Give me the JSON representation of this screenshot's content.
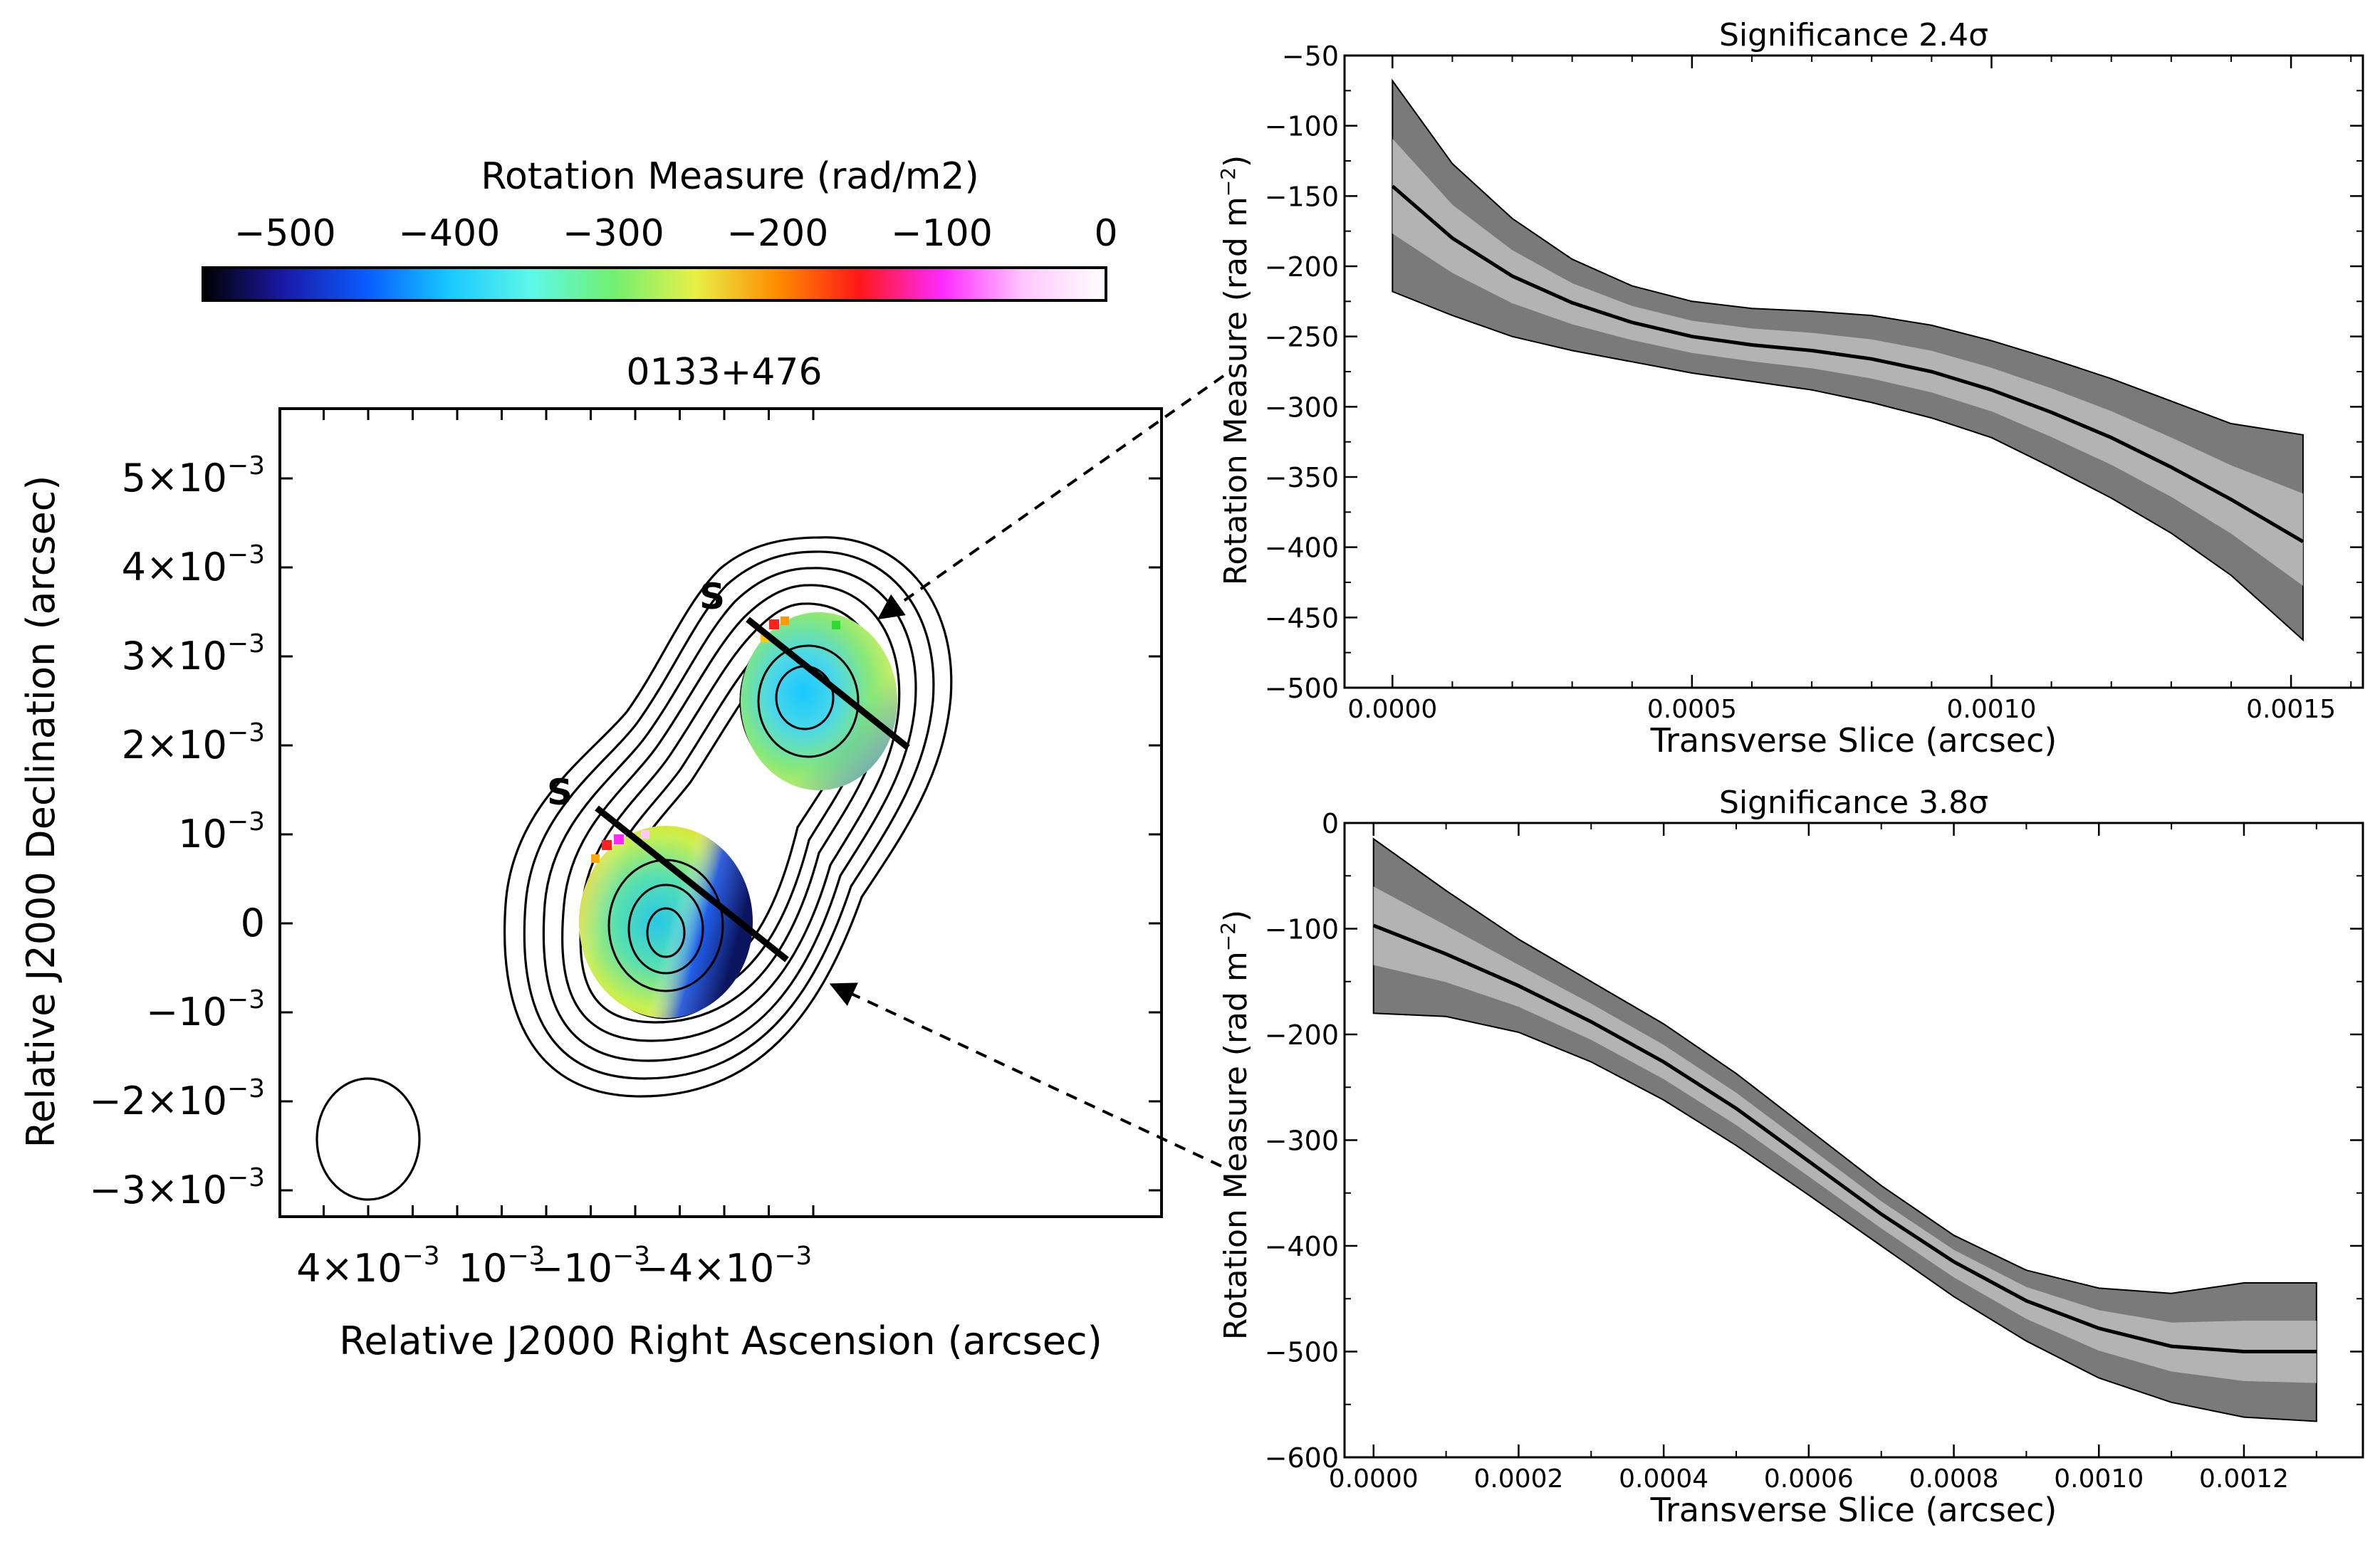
{
  "colorbar": {
    "title": "Rotation Measure (rad/m2)",
    "ticks": [
      "−500",
      "−400",
      "−300",
      "−200",
      "−100",
      "0"
    ],
    "range": [
      -550,
      0
    ],
    "colors": [
      "#000000",
      "#1a1aa8",
      "#0a5cff",
      "#18c8ff",
      "#5ef8e8",
      "#70f070",
      "#e8f048",
      "#ff8c00",
      "#ff1818",
      "#ff28ff",
      "#ffc8ff",
      "#ffffff"
    ]
  },
  "rm_map": {
    "title": "0133+476",
    "xlabel": "Relative J2000 Right Ascension (arcsec)",
    "ylabel": "Relative J2000 Declination (arcsec)",
    "x_ticks": [
      {
        "label": "4×10",
        "exp": "−3"
      },
      {
        "label": "10",
        "exp": "−3"
      },
      {
        "label": "−10",
        "exp": "−3"
      },
      {
        "label": "−4×10",
        "exp": "−3"
      }
    ],
    "y_ticks": [
      {
        "label": "5×10",
        "exp": "−3"
      },
      {
        "label": "4×10",
        "exp": "−3"
      },
      {
        "label": "3×10",
        "exp": "−3"
      },
      {
        "label": "2×10",
        "exp": "−3"
      },
      {
        "label": "10",
        "exp": "−3"
      },
      {
        "label": "0",
        "exp": ""
      },
      {
        "label": "−10",
        "exp": "−3"
      },
      {
        "label": "−2×10",
        "exp": "−3"
      },
      {
        "label": "−3×10",
        "exp": "−3"
      }
    ],
    "slice_label": "S"
  },
  "chart_data": [
    {
      "type": "line",
      "title": "Significance 2.4σ",
      "xlabel": "Transverse Slice (arcsec)",
      "ylabel": "Rotation Measure (rad m⁻²)",
      "xlim": [
        -8e-05,
        0.00162
      ],
      "ylim": [
        -500,
        -50
      ],
      "x_ticks": [
        0.0,
        0.0005,
        0.001,
        0.0015
      ],
      "x_tick_labels": [
        "0.0000",
        "0.0005",
        "0.0010",
        "0.0015"
      ],
      "y_ticks": [
        -50,
        -100,
        -150,
        -200,
        -250,
        -300,
        -350,
        -400,
        -450,
        -500
      ],
      "x": [
        0.0,
        0.0001,
        0.0002,
        0.0003,
        0.0004,
        0.0005,
        0.0006,
        0.0007,
        0.0008,
        0.0009,
        0.001,
        0.0011,
        0.0012,
        0.0013,
        0.0014,
        0.00152
      ],
      "y": [
        -143,
        -180,
        -207,
        -226,
        -240,
        -250,
        -256,
        -260,
        -266,
        -275,
        -288,
        -304,
        -322,
        -343,
        -366,
        -396
      ],
      "upper": [
        -68,
        -127,
        -166,
        -195,
        -214,
        -225,
        -230,
        -232,
        -235,
        -242,
        -253,
        -266,
        -280,
        -296,
        -312,
        -320
      ],
      "lower": [
        -218,
        -235,
        -250,
        -260,
        -268,
        -276,
        -282,
        -288,
        -297,
        -308,
        -322,
        -343,
        -365,
        -390,
        -420,
        -466
      ]
    },
    {
      "type": "line",
      "title": "Significance 3.8σ",
      "xlabel": "Transverse Slice (arcsec)",
      "ylabel": "Rotation Measure (rad m⁻²)",
      "xlim": [
        -4e-05,
        0.001364
      ],
      "ylim": [
        -600,
        0
      ],
      "x_ticks": [
        0.0,
        0.0002,
        0.0004,
        0.0006,
        0.0008,
        0.001,
        0.0012
      ],
      "x_tick_labels": [
        "0.0000",
        "0.0002",
        "0.0004",
        "0.0006",
        "0.0008",
        "0.0010",
        "0.0012"
      ],
      "y_ticks": [
        0,
        -100,
        -200,
        -300,
        -400,
        -500,
        -600
      ],
      "y_tick_labels": [
        "0",
        "−100",
        "−200",
        "−300",
        "−400",
        "−500",
        "−600"
      ],
      "x": [
        0.0,
        0.0001,
        0.0002,
        0.0003,
        0.0004,
        0.0005,
        0.0006,
        0.0007,
        0.0008,
        0.0009,
        0.001,
        0.0011,
        0.0012,
        0.0013
      ],
      "y": [
        -97,
        -124,
        -154,
        -188,
        -226,
        -270,
        -320,
        -370,
        -415,
        -452,
        -478,
        -495,
        -500,
        -500
      ],
      "upper": [
        -15,
        -64,
        -110,
        -150,
        -190,
        -237,
        -290,
        -343,
        -390,
        -423,
        -440,
        -445,
        -435,
        -435
      ],
      "lower": [
        -180,
        -183,
        -198,
        -226,
        -262,
        -305,
        -352,
        -400,
        -448,
        -490,
        -525,
        -548,
        -562,
        -566
      ]
    }
  ],
  "labels": {
    "plot1_ylabel_main": "Rotation Measure (rad m",
    "plot1_ylabel_exp": "−2",
    "plot1_ylabel_close": ")",
    "plot2_ylabel_main": "Rotation Measure (rad m",
    "plot2_ylabel_exp": "−2",
    "plot2_ylabel_close": ")"
  }
}
